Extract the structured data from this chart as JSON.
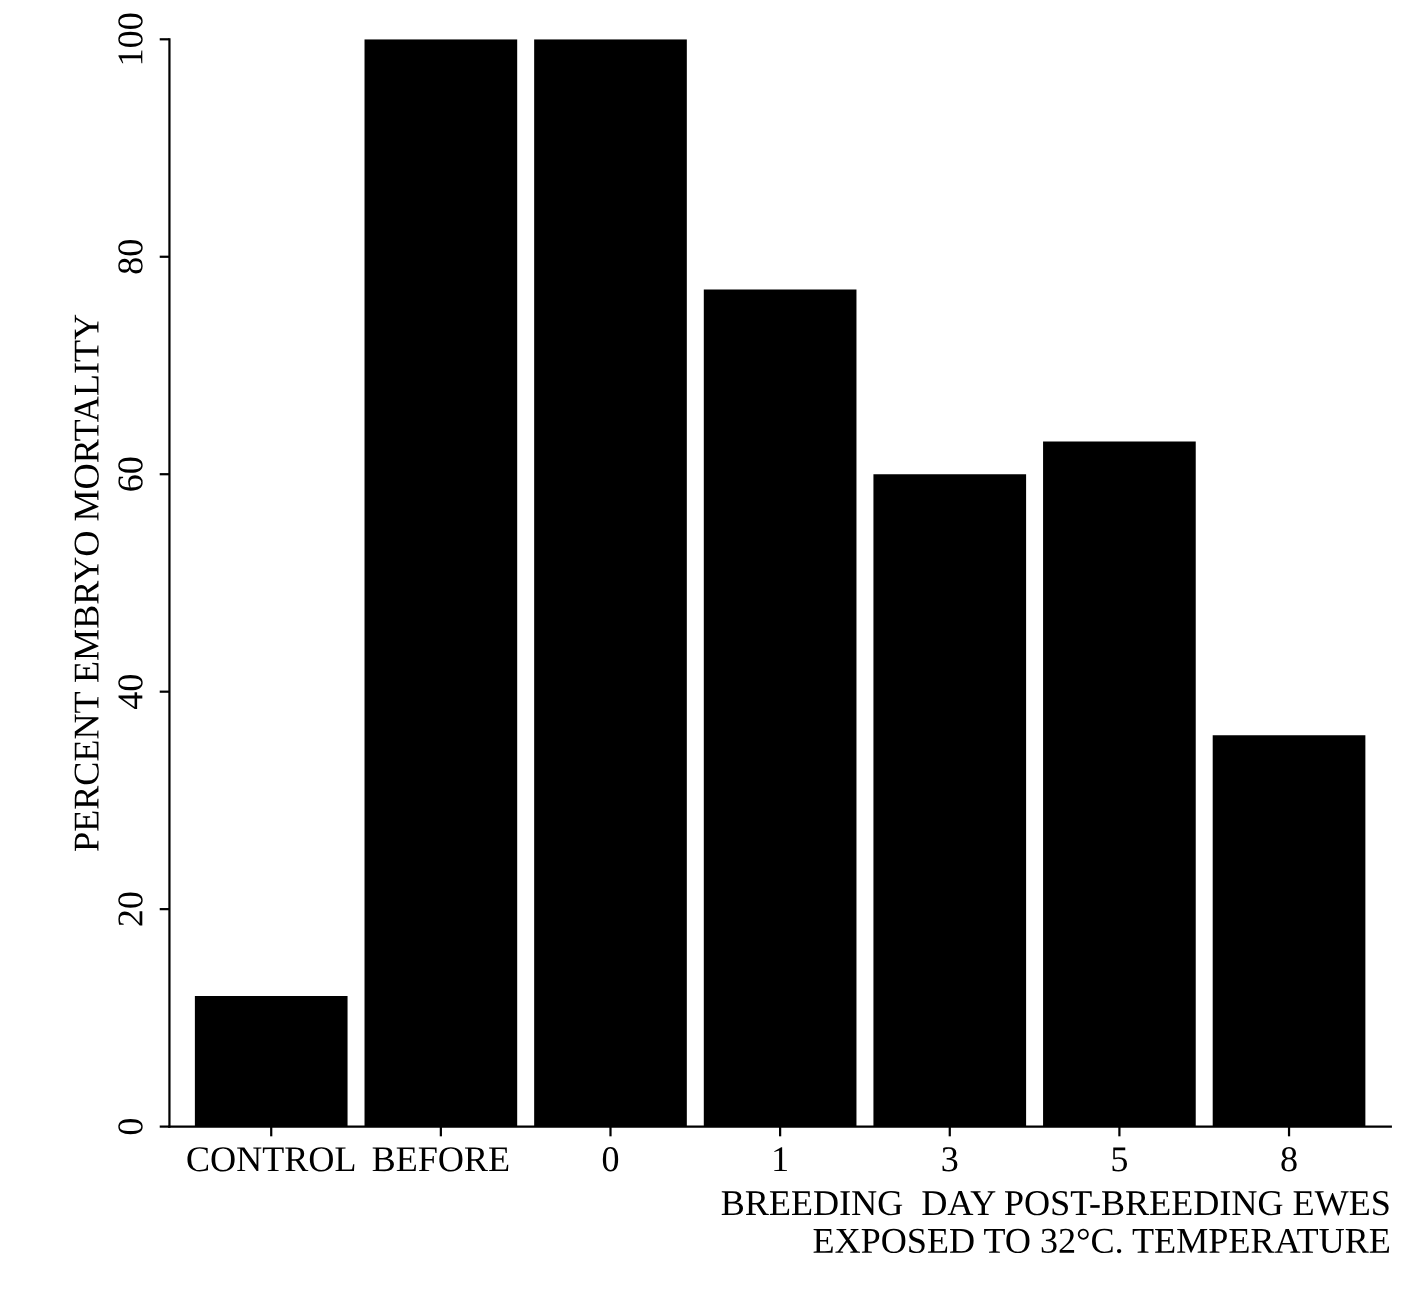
{
  "chart_data": {
    "type": "bar",
    "ylabel": "PERCENT EMBRYO MORTALITY",
    "xlabel": "BREEDING  DAY POST-BREEDING EWES\nEXPOSED TO 32°C. TEMPERATURE",
    "categories": [
      "CONTROL",
      "BEFORE",
      "0",
      "1",
      "3",
      "5",
      "8"
    ],
    "values": [
      12,
      100,
      100,
      77,
      60,
      63,
      36
    ],
    "color": "#000000",
    "ylim": [
      0,
      100
    ],
    "yticks": [
      0,
      20,
      40,
      60,
      80,
      100
    ],
    "grid": false
  }
}
